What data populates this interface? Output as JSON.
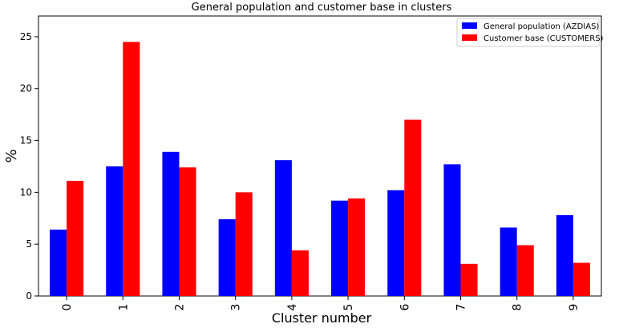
{
  "chart_data": {
    "type": "bar",
    "title": "General population and customer base in clusters",
    "xlabel": "Cluster number",
    "ylabel": "%",
    "categories": [
      "0",
      "1",
      "2",
      "3",
      "4",
      "5",
      "6",
      "7",
      "8",
      "9"
    ],
    "series": [
      {
        "name": "General population (AZDIAS)",
        "color": "#0000ff",
        "values": [
          6.4,
          12.5,
          13.9,
          7.4,
          13.1,
          9.2,
          10.2,
          12.7,
          6.6,
          7.8
        ]
      },
      {
        "name": "Customer base (CUSTOMERS)",
        "color": "#ff0000",
        "values": [
          11.1,
          24.5,
          12.4,
          10.0,
          4.4,
          9.4,
          17.0,
          3.1,
          4.9,
          3.2
        ]
      }
    ],
    "ylim": [
      0,
      27
    ],
    "yticks": [
      "0",
      "5",
      "10",
      "15",
      "20",
      "25"
    ],
    "grid": false,
    "legend": "top-right"
  }
}
